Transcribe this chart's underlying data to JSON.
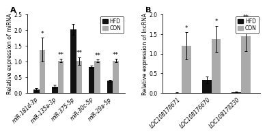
{
  "panel_A": {
    "title": "A",
    "ylabel": "Relative expression of miRNA",
    "ylim": [
      0,
      2.5
    ],
    "yticks": [
      0,
      0.5,
      1.0,
      1.5,
      2.0,
      2.5
    ],
    "categories": [
      "miR-181d-3p",
      "miR-135a-3p",
      "miR-375-5p",
      "miR-30c-5p",
      "miR-29a-5p"
    ],
    "HFD_values": [
      0.1,
      0.2,
      2.03,
      0.83,
      0.38
    ],
    "CON_values": [
      1.38,
      1.03,
      1.02,
      1.02,
      1.03
    ],
    "HFD_errors": [
      0.05,
      0.05,
      0.18,
      0.04,
      0.04
    ],
    "CON_errors": [
      0.38,
      0.05,
      0.12,
      0.05,
      0.05
    ],
    "HFD_color": "#111111",
    "CON_color": "#aaaaaa",
    "significance_HFD": [
      "",
      "",
      "",
      "",
      ""
    ],
    "significance_CON": [
      "*",
      "**",
      "**",
      "**",
      "**"
    ]
  },
  "panel_B": {
    "title": "B",
    "ylabel": "Relative expression of lncRNA",
    "ylim": [
      0,
      2.0
    ],
    "yticks": [
      0,
      0.5,
      1.0,
      1.5,
      2.0
    ],
    "categories": [
      "LOC108178671",
      "LOC108176670",
      "LOC108178230"
    ],
    "HFD_values": [
      0.0,
      0.33,
      0.02
    ],
    "CON_values": [
      1.2,
      1.38,
      1.44
    ],
    "HFD_errors": [
      0.01,
      0.09,
      0.01
    ],
    "CON_errors": [
      0.35,
      0.33,
      0.38
    ],
    "HFD_color": "#111111",
    "CON_color": "#aaaaaa",
    "significance_HFD": [
      "",
      "",
      ""
    ],
    "significance_CON": [
      "*",
      "*",
      "**"
    ]
  },
  "legend_labels": [
    "HFD",
    "CON"
  ],
  "bar_width": 0.32,
  "tick_fontsize": 5.5,
  "label_fontsize": 5.8,
  "title_fontsize": 8,
  "sig_fontsize": 6.5,
  "legend_fontsize": 5.5
}
